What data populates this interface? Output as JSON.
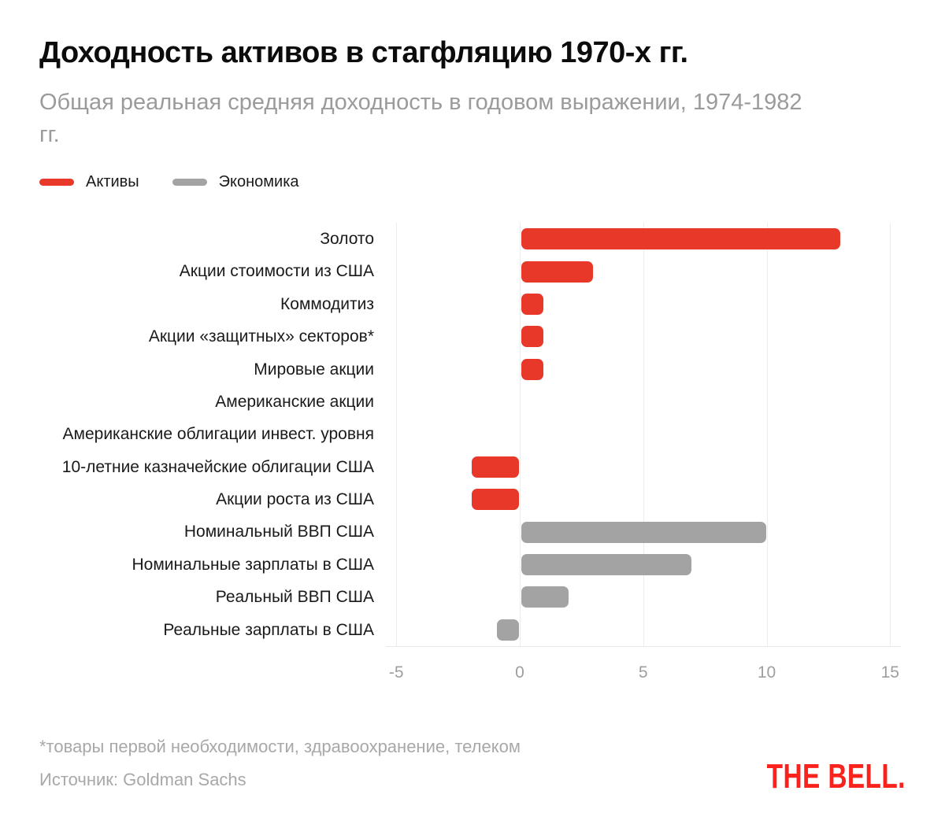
{
  "header": {
    "title": "Доходность активов в стагфляцию 1970-х гг.",
    "subtitle": "Общая реальная средняя доходность в годовом выражении, 1974-1982 гг."
  },
  "legend": [
    {
      "label": "Активы",
      "color": "#e7382a"
    },
    {
      "label": "Экономика",
      "color": "#a3a3a3"
    }
  ],
  "colors": {
    "assets_red": "#e7382a",
    "economy_gray": "#a3a3a3",
    "logo_red": "#f9221d",
    "gridline": "#ececec",
    "tick_text": "#9e9e9e",
    "label_text": "#1a1a1a",
    "muted_text": "#9b9b9b"
  },
  "chart_data": {
    "type": "bar",
    "orientation": "horizontal",
    "title": "Доходность активов в стагфляцию 1970-х гг.",
    "subtitle": "Общая реальная средняя доходность в годовом выражении, 1974-1982 гг.",
    "xlabel": "",
    "ylabel": "",
    "x_ticks": [
      -5,
      0,
      5,
      10,
      15
    ],
    "x_range": [
      -5.4,
      15.4
    ],
    "grid": "vertical",
    "legend_position": "top-left",
    "series_legend": [
      {
        "name": "Активы",
        "color": "#e7382a"
      },
      {
        "name": "Экономика",
        "color": "#a3a3a3"
      }
    ],
    "bars": [
      {
        "label": "Золото",
        "value": 13,
        "series": "Активы"
      },
      {
        "label": "Акции стоимости из США",
        "value": 3,
        "series": "Активы"
      },
      {
        "label": "Коммодитиз",
        "value": 1,
        "series": "Активы"
      },
      {
        "label": "Акции «защитных» секторов*",
        "value": 1,
        "series": "Активы"
      },
      {
        "label": "Мировые акции",
        "value": 1,
        "series": "Активы"
      },
      {
        "label": "Американские акции",
        "value": 0,
        "series": "Активы"
      },
      {
        "label": "Американские облигации инвест. уровня",
        "value": 0,
        "series": "Активы"
      },
      {
        "label": "10-летние казначейские облигации США",
        "value": -2,
        "series": "Активы"
      },
      {
        "label": "Акции роста из США",
        "value": -2,
        "series": "Активы"
      },
      {
        "label": "Номинальный ВВП США",
        "value": 10,
        "series": "Экономика"
      },
      {
        "label": "Номинальные зарплаты в США",
        "value": 7,
        "series": "Экономика"
      },
      {
        "label": "Реальный ВВП США",
        "value": 2,
        "series": "Экономика"
      },
      {
        "label": "Реальные зарплаты в США",
        "value": -1,
        "series": "Экономика"
      }
    ]
  },
  "footer": {
    "footnote": "*товары первой необходимости, здравоохранение, телеком",
    "source": "Источник: Goldman Sachs",
    "logo": "THE BELL."
  }
}
